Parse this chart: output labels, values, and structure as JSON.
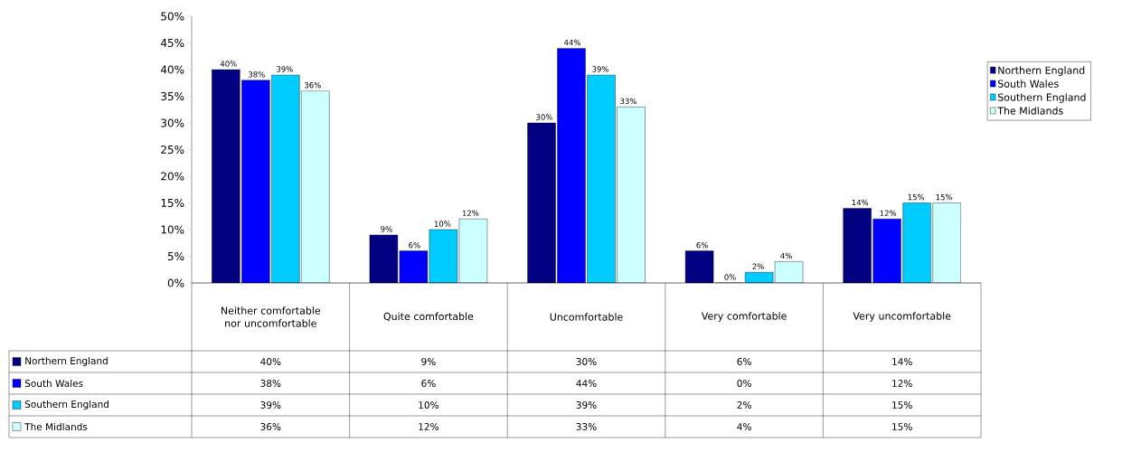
{
  "chart_data": {
    "type": "bar",
    "categories": [
      "Neither comfortable nor uncomfortable",
      "Quite comfortable",
      "Uncomfortable",
      "Very comfortable",
      "Very uncomfortable"
    ],
    "series": [
      {
        "name": "Northern England",
        "color": "#000080",
        "values": [
          40,
          9,
          30,
          6,
          14
        ],
        "value_labels": [
          "40%",
          "9%",
          "30%",
          "6%",
          "14%"
        ]
      },
      {
        "name": "South Wales",
        "color": "#0000ff",
        "values": [
          38,
          6,
          44,
          0,
          12
        ],
        "value_labels": [
          "38%",
          "6%",
          "44%",
          "0%",
          "12%"
        ]
      },
      {
        "name": "Southern England",
        "color": "#00ccff",
        "values": [
          39,
          10,
          39,
          2,
          15
        ],
        "value_labels": [
          "39%",
          "10%",
          "39%",
          "2%",
          "15%"
        ]
      },
      {
        "name": "The Midlands",
        "color": "#ccffff",
        "values": [
          36,
          12,
          33,
          4,
          15
        ],
        "value_labels": [
          "36%",
          "12%",
          "33%",
          "4%",
          "15%"
        ]
      }
    ],
    "ylim": [
      0,
      50
    ],
    "yticks": [
      {
        "value": 0,
        "label": "0%"
      },
      {
        "value": 5,
        "label": "5%"
      },
      {
        "value": 10,
        "label": "10%"
      },
      {
        "value": 15,
        "label": "15%"
      },
      {
        "value": 20,
        "label": "20%"
      },
      {
        "value": 25,
        "label": "25%"
      },
      {
        "value": 30,
        "label": "30%"
      },
      {
        "value": 35,
        "label": "35%"
      },
      {
        "value": 40,
        "label": "40%"
      },
      {
        "value": 45,
        "label": "45%"
      },
      {
        "value": 50,
        "label": "50%"
      }
    ],
    "legend": "right"
  }
}
